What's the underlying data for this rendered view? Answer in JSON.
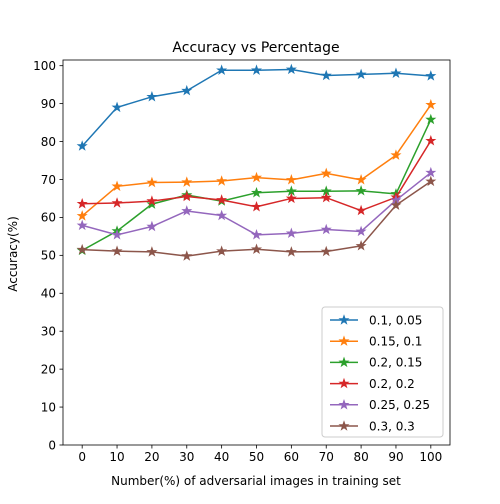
{
  "chart_data": {
    "type": "line",
    "title": "Accuracy vs Percentage",
    "xlabel": "Number(%) of adversarial images in training set",
    "ylabel": "Accuracy(%)",
    "x": [
      0,
      10,
      20,
      30,
      40,
      50,
      60,
      70,
      80,
      90,
      100
    ],
    "xlim": [
      -5.5,
      105.5
    ],
    "ylim": [
      0,
      101.5
    ],
    "xticks": [
      "0",
      "10",
      "20",
      "30",
      "40",
      "50",
      "60",
      "70",
      "80",
      "90",
      "100"
    ],
    "yticks": [
      "0",
      "10",
      "20",
      "30",
      "40",
      "50",
      "60",
      "70",
      "80",
      "90",
      "100"
    ],
    "grid": false,
    "marker": "star",
    "legend_position": "lower-right",
    "series": [
      {
        "name": "0.1, 0.05",
        "color": "#1f77b4",
        "values": [
          78.8,
          89.0,
          91.8,
          93.4,
          98.8,
          98.8,
          99.0,
          97.4,
          97.7,
          98.0,
          97.3
        ]
      },
      {
        "name": "0.15, 0.1",
        "color": "#ff7f0e",
        "values": [
          60.4,
          68.2,
          69.2,
          69.3,
          69.6,
          70.5,
          69.9,
          71.6,
          69.9,
          76.4,
          89.7
        ]
      },
      {
        "name": "0.2, 0.15",
        "color": "#2ca02c",
        "values": [
          51.3,
          56.4,
          63.5,
          65.9,
          64.3,
          66.5,
          66.9,
          66.9,
          67.0,
          66.2,
          85.8
        ]
      },
      {
        "name": "0.2, 0.2",
        "color": "#d62728",
        "values": [
          63.6,
          63.8,
          64.3,
          65.5,
          64.6,
          62.8,
          65.0,
          65.2,
          61.8,
          65.3,
          80.2
        ]
      },
      {
        "name": "0.25, 0.25",
        "color": "#9467bd",
        "values": [
          57.9,
          55.4,
          57.6,
          61.7,
          60.5,
          55.4,
          55.8,
          56.8,
          56.3,
          64.5,
          71.8
        ]
      },
      {
        "name": "0.3, 0.3",
        "color": "#8c564b",
        "values": [
          51.5,
          51.1,
          50.9,
          49.8,
          51.1,
          51.6,
          50.9,
          51.0,
          52.5,
          63.2,
          69.5
        ]
      }
    ]
  }
}
